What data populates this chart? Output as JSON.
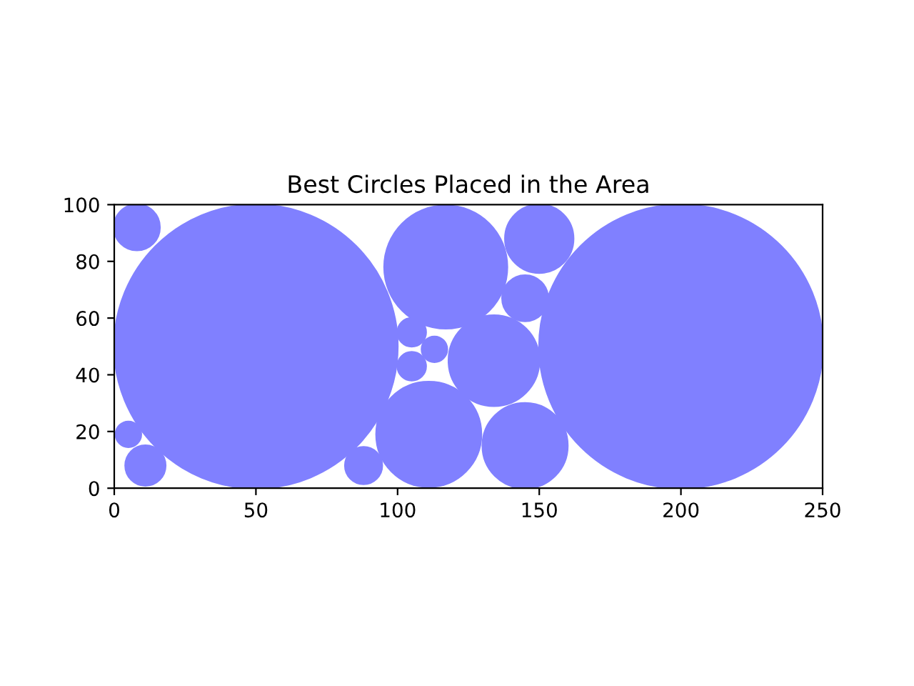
{
  "chart_data": {
    "type": "bubble",
    "title": "Best Circles Placed in the Area",
    "x": [
      50,
      200,
      8,
      5,
      11,
      88,
      111,
      117,
      150,
      145,
      134,
      145,
      105,
      105,
      113
    ],
    "values": [
      50,
      50,
      92,
      19,
      8,
      8,
      19,
      78,
      88,
      67,
      45,
      15,
      55,
      43,
      49
    ],
    "sizes": [
      1,
      1,
      0.026,
      0.008,
      0.02,
      0.017,
      0.137,
      0.188,
      0.058,
      0.026,
      0.102,
      0.09,
      0.01,
      0.01,
      0.008
    ],
    "color": "#8080ff",
    "xlim": [
      0,
      250
    ],
    "ylim": [
      0,
      100
    ],
    "xticks": [
      0,
      50,
      100,
      150,
      200,
      250
    ],
    "yticks": [
      0,
      20,
      40,
      60,
      80,
      100
    ],
    "grid": false,
    "legend": false
  }
}
